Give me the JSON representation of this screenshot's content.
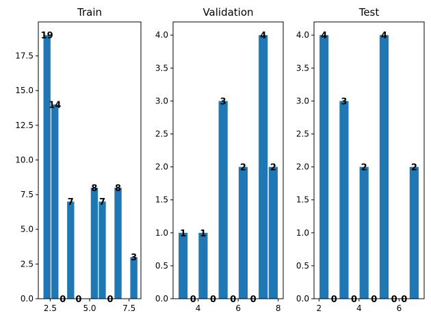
{
  "chart_data": [
    {
      "type": "bar",
      "title": "Train",
      "color": "#1f77b4",
      "x": [
        2.3,
        2.8,
        3.3,
        3.8,
        4.3,
        4.8,
        5.3,
        5.8,
        6.3,
        6.8,
        7.3,
        7.8
      ],
      "values": [
        19,
        14,
        0,
        7,
        0,
        0,
        8,
        7,
        0,
        8,
        0,
        3
      ],
      "labels": [
        "19",
        "14",
        "0",
        "7",
        "0",
        "",
        "8",
        "7",
        "0",
        "8",
        "",
        "3"
      ],
      "xlim": [
        1.75,
        8.25
      ],
      "ylim": [
        0,
        19.95
      ],
      "xticks": [
        2.5,
        5.0,
        7.5
      ],
      "xticklabels": [
        "2.5",
        "5.0",
        "7.5"
      ],
      "yticks": [
        0,
        2.5,
        5,
        7.5,
        10,
        12.5,
        15,
        17.5
      ],
      "yticklabels": [
        "0.0",
        "2.5",
        "5.0",
        "7.5",
        "10.0",
        "12.5",
        "15.0",
        "17.5"
      ],
      "xlabel": "",
      "ylabel": ""
    },
    {
      "type": "bar",
      "title": "Validation",
      "color": "#1f77b4",
      "x": [
        3.25,
        3.75,
        4.25,
        4.75,
        5.25,
        5.75,
        6.25,
        6.75,
        7.25,
        7.75
      ],
      "values": [
        1,
        0,
        1,
        0,
        3,
        0,
        2,
        0,
        4,
        2
      ],
      "labels": [
        "1",
        "0",
        "1",
        "0",
        "3",
        "0",
        "2",
        "0",
        "4",
        "2"
      ],
      "xlim": [
        2.75,
        8.25
      ],
      "ylim": [
        0,
        4.2
      ],
      "xticks": [
        4,
        6,
        8
      ],
      "xticklabels": [
        "4",
        "6",
        "8"
      ],
      "yticks": [
        0,
        0.5,
        1,
        1.5,
        2,
        2.5,
        3,
        3.5,
        4
      ],
      "yticklabels": [
        "0.0",
        "0.5",
        "1.0",
        "1.5",
        "2.0",
        "2.5",
        "3.0",
        "3.5",
        "4.0"
      ],
      "xlabel": "",
      "ylabel": ""
    },
    {
      "type": "bar",
      "title": "Test",
      "color": "#1f77b4",
      "x": [
        2.25,
        2.75,
        3.25,
        3.75,
        4.25,
        4.75,
        5.25,
        5.75,
        6.25,
        6.75
      ],
      "values": [
        4,
        0,
        3,
        0,
        2,
        0,
        4,
        0,
        0,
        2
      ],
      "labels": [
        "4",
        "0",
        "3",
        "0",
        "2",
        "0",
        "4",
        "0",
        "0",
        "2"
      ],
      "xlim": [
        1.75,
        7.25
      ],
      "ylim": [
        0,
        4.2
      ],
      "xticks": [
        2,
        4,
        6
      ],
      "xticklabels": [
        "2",
        "4",
        "6"
      ],
      "yticks": [
        0,
        0.5,
        1,
        1.5,
        2,
        2.5,
        3,
        3.5,
        4
      ],
      "yticklabels": [
        "0.0",
        "0.5",
        "1.0",
        "1.5",
        "2.0",
        "2.5",
        "3.0",
        "3.5",
        "4.0"
      ],
      "xlabel": "",
      "ylabel": ""
    }
  ]
}
